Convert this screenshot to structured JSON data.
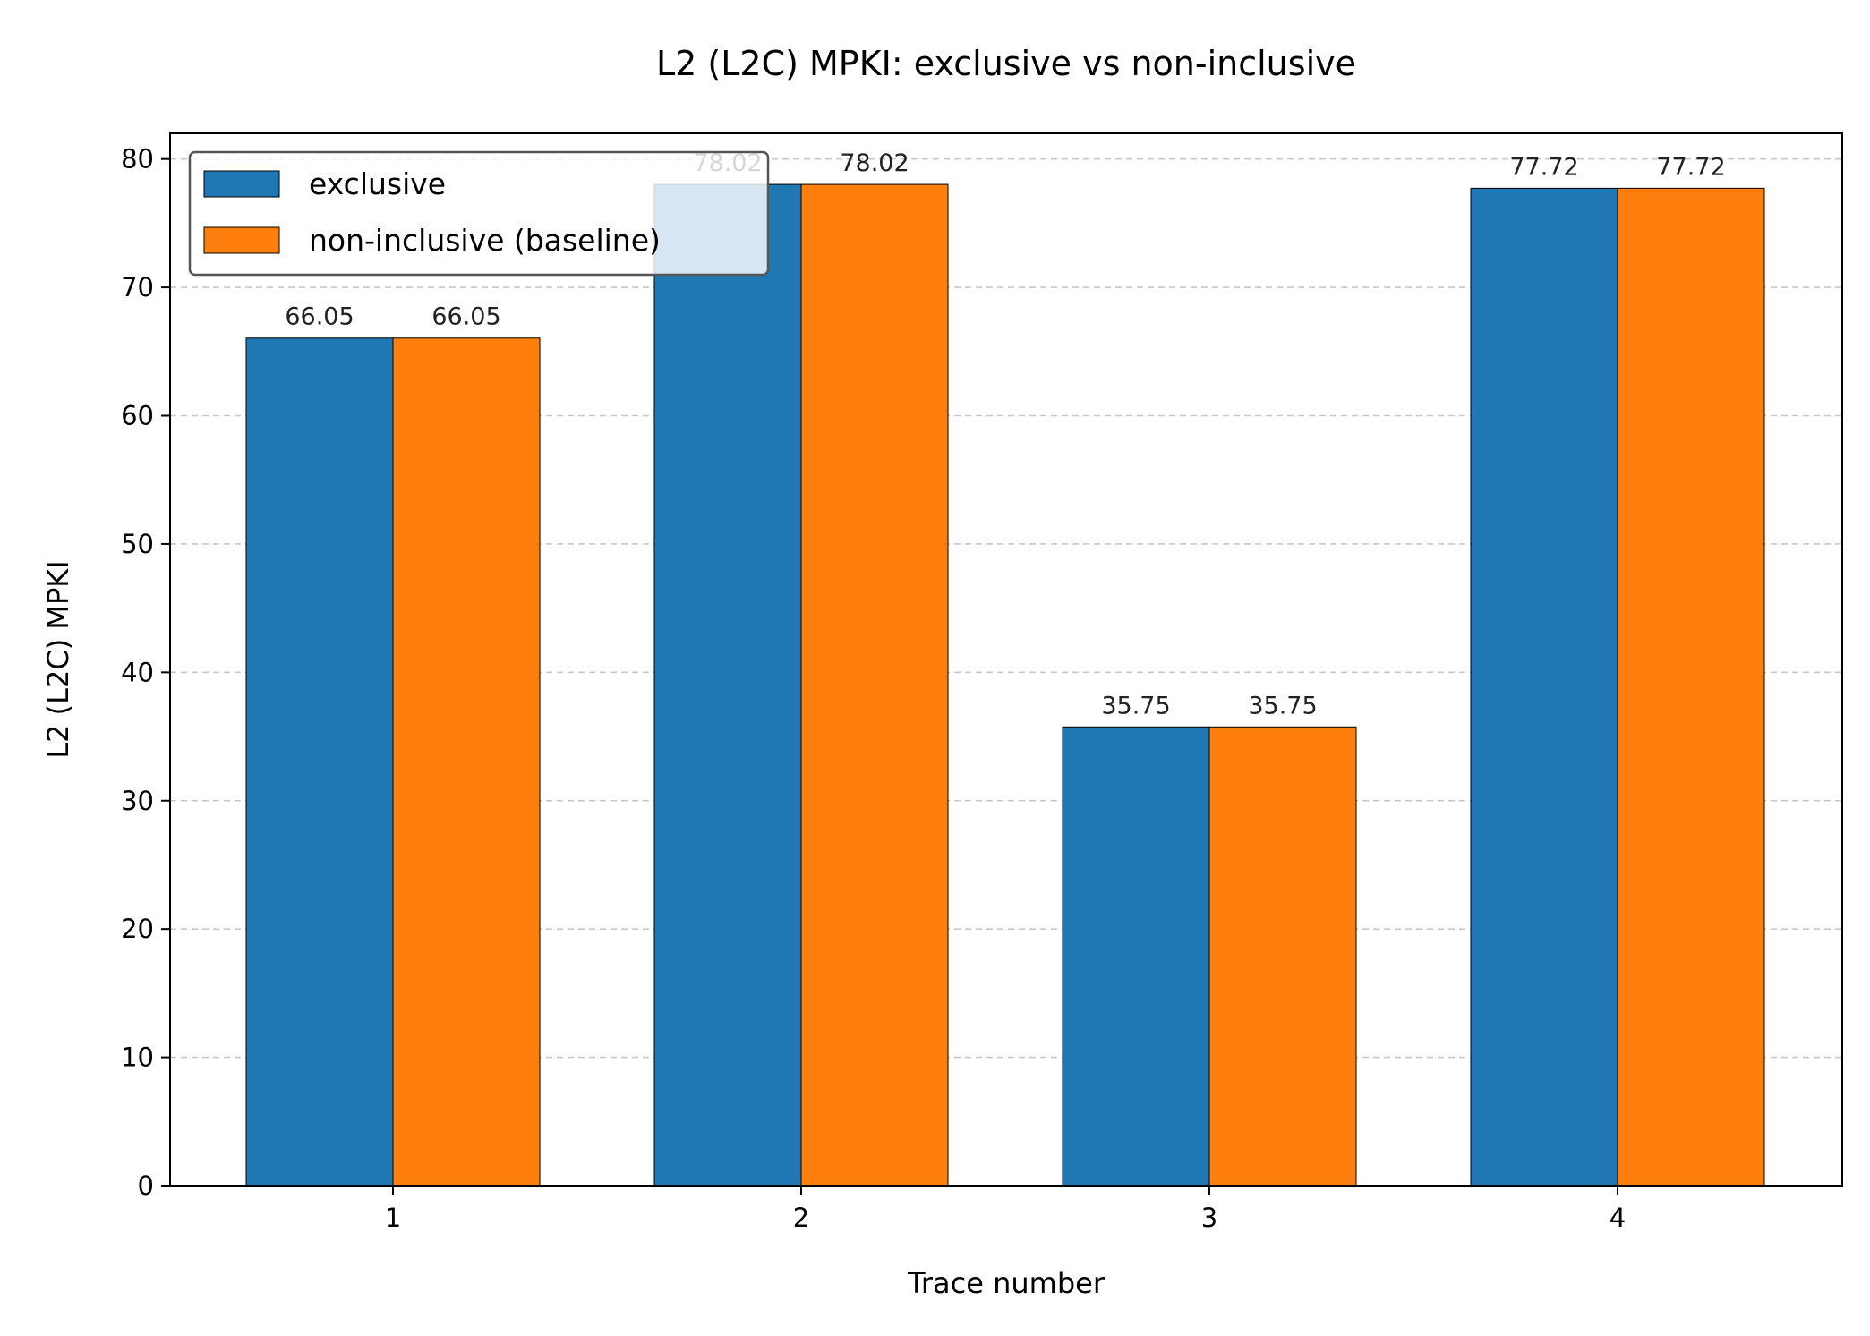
{
  "chart_data": {
    "type": "bar",
    "title": "L2 (L2C) MPKI: exclusive vs non-inclusive",
    "xlabel": "Trace number",
    "ylabel": "L2 (L2C) MPKI",
    "categories": [
      "1",
      "2",
      "3",
      "4"
    ],
    "series": [
      {
        "name": "exclusive",
        "color": "#1f77b4",
        "values": [
          66.05,
          78.02,
          35.75,
          77.72
        ],
        "labels": [
          "66.05",
          "78.02",
          "35.75",
          "77.72"
        ]
      },
      {
        "name": "non-inclusive (baseline)",
        "color": "#ff7f0e",
        "values": [
          66.05,
          78.02,
          35.75,
          77.72
        ],
        "labels": [
          "66.05",
          "78.02",
          "35.75",
          "77.72"
        ]
      }
    ],
    "ylim": [
      0,
      82
    ],
    "yticks": [
      0,
      10,
      20,
      30,
      40,
      50,
      60,
      70,
      80
    ],
    "ytick_labels": [
      "0",
      "10",
      "20",
      "30",
      "40",
      "50",
      "60",
      "70",
      "80"
    ],
    "grid": "y-dashed",
    "legend": "top-left"
  }
}
